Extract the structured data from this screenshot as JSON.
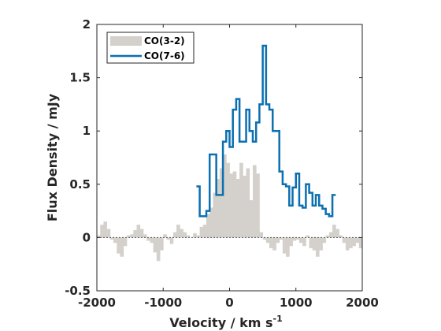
{
  "chart_data": {
    "type": "bar",
    "xlabel": "Velocity / km s",
    "xlabel_superscript": "-1",
    "ylabel": "Flux Density / mJy",
    "xlim": [
      -2000,
      2000
    ],
    "ylim": [
      -0.5,
      2
    ],
    "xticks": [
      -2000,
      -1000,
      0,
      1000,
      2000
    ],
    "xtick_labels": [
      "-2000",
      "-1000",
      "0",
      "1000",
      "2000"
    ],
    "yticks": [
      -0.5,
      0,
      0.5,
      1,
      1.5,
      2
    ],
    "ytick_labels": [
      "-0.5",
      "0",
      "0.5",
      "1",
      "1.5",
      "2"
    ],
    "grid": false,
    "legend_position": "top-left",
    "series": [
      {
        "name": "CO(3-2)",
        "style": "filled-histogram",
        "color": "#d4d0cb",
        "bin_width": 50,
        "x": [
          -1975,
          -1925,
          -1875,
          -1825,
          -1775,
          -1725,
          -1675,
          -1625,
          -1575,
          -1525,
          -1475,
          -1425,
          -1375,
          -1325,
          -1275,
          -1225,
          -1175,
          -1125,
          -1075,
          -1025,
          -975,
          -925,
          -875,
          -825,
          -775,
          -725,
          -675,
          -625,
          -575,
          -525,
          -475,
          -425,
          -375,
          -325,
          -275,
          -225,
          -175,
          -125,
          -75,
          -25,
          25,
          75,
          125,
          175,
          225,
          275,
          325,
          375,
          425,
          475,
          525,
          575,
          625,
          675,
          725,
          775,
          825,
          875,
          925,
          975,
          1025,
          1075,
          1125,
          1175,
          1225,
          1275,
          1325,
          1375,
          1425,
          1475,
          1525,
          1575,
          1625,
          1675,
          1725,
          1775,
          1825,
          1875,
          1925,
          1975
        ],
        "values": [
          0.02,
          0.12,
          0.15,
          0.08,
          -0.02,
          -0.05,
          -0.15,
          -0.18,
          -0.08,
          0.02,
          0.03,
          0.07,
          0.12,
          0.08,
          0.03,
          -0.03,
          -0.05,
          -0.14,
          -0.22,
          -0.12,
          0.03,
          -0.02,
          -0.06,
          0.05,
          0.12,
          0.08,
          0.05,
          0.02,
          0.0,
          0.04,
          0.02,
          0.1,
          0.12,
          0.22,
          0.28,
          0.42,
          0.55,
          0.65,
          0.78,
          0.7,
          0.6,
          0.62,
          0.55,
          0.7,
          0.58,
          0.65,
          0.35,
          0.68,
          0.6,
          0.05,
          -0.02,
          -0.05,
          -0.1,
          -0.12,
          -0.05,
          -0.02,
          -0.15,
          -0.18,
          -0.08,
          -0.03,
          -0.02,
          -0.05,
          -0.08,
          0.02,
          -0.1,
          -0.12,
          -0.18,
          -0.12,
          -0.05,
          0.02,
          0.05,
          0.12,
          0.08,
          0.02,
          -0.05,
          -0.12,
          -0.1,
          -0.08,
          -0.05,
          -0.1
        ]
      },
      {
        "name": "CO(7-6)",
        "style": "step-line",
        "color": "#0b6fb0",
        "bin_width": 50,
        "x": [
          -475,
          -425,
          -375,
          -325,
          -275,
          -225,
          -175,
          -125,
          -75,
          -25,
          25,
          75,
          125,
          175,
          225,
          275,
          325,
          375,
          425,
          475,
          525,
          575,
          625,
          675,
          725,
          775,
          825,
          875,
          925,
          975,
          1025,
          1075,
          1125,
          1175,
          1225,
          1275,
          1325,
          1375,
          1425,
          1475,
          1525,
          1575
        ],
        "values": [
          0.48,
          0.2,
          0.2,
          0.25,
          0.78,
          0.78,
          0.4,
          0.4,
          0.9,
          1.0,
          0.85,
          1.2,
          1.3,
          0.9,
          0.9,
          1.2,
          1.0,
          0.9,
          1.08,
          1.25,
          1.8,
          1.25,
          1.2,
          1.0,
          1.0,
          0.62,
          0.5,
          0.48,
          0.3,
          0.47,
          0.6,
          0.3,
          0.28,
          0.5,
          0.42,
          0.3,
          0.4,
          0.3,
          0.27,
          0.22,
          0.2,
          0.4
        ]
      }
    ]
  }
}
